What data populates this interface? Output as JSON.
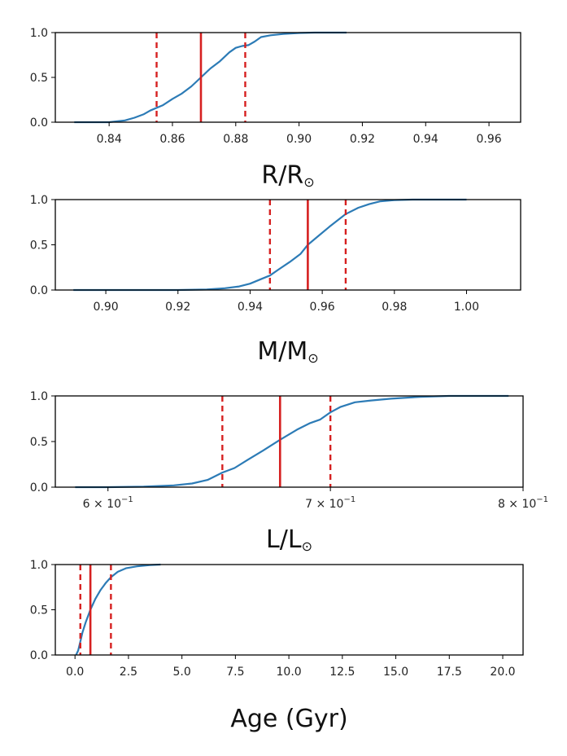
{
  "chart_data": [
    {
      "type": "line",
      "name": "radius",
      "xlabel": "R/R",
      "xlabel_symbol": "⊙",
      "x_scale": "linear",
      "xlim": [
        0.823,
        0.97
      ],
      "ylim": [
        0,
        1
      ],
      "xticks": [
        0.84,
        0.86,
        0.88,
        0.9,
        0.92,
        0.94,
        0.96
      ],
      "xtick_labels": [
        "0.84",
        "0.86",
        "0.88",
        "0.90",
        "0.92",
        "0.94",
        "0.96"
      ],
      "yticks": [
        0,
        0.5,
        1.0
      ],
      "ytick_labels": [
        "0.0",
        "0.5",
        "1.0"
      ],
      "median": 0.869,
      "lower": 0.855,
      "upper": 0.883,
      "cdf": {
        "x": [
          0.829,
          0.835,
          0.84,
          0.845,
          0.848,
          0.851,
          0.853,
          0.855,
          0.857,
          0.86,
          0.863,
          0.866,
          0.869,
          0.872,
          0.875,
          0.878,
          0.88,
          0.882,
          0.884,
          0.886,
          0.888,
          0.891,
          0.895,
          0.9,
          0.905,
          0.91,
          0.915
        ],
        "y": [
          0.0,
          0.0,
          0.0,
          0.02,
          0.05,
          0.09,
          0.13,
          0.16,
          0.19,
          0.26,
          0.32,
          0.4,
          0.5,
          0.6,
          0.68,
          0.78,
          0.83,
          0.85,
          0.86,
          0.9,
          0.95,
          0.97,
          0.985,
          0.995,
          1.0,
          1.0,
          1.0
        ]
      }
    },
    {
      "type": "line",
      "name": "mass",
      "xlabel": "M/M",
      "xlabel_symbol": "⊙",
      "x_scale": "linear",
      "xlim": [
        0.886,
        1.015
      ],
      "ylim": [
        0,
        1
      ],
      "xticks": [
        0.9,
        0.92,
        0.94,
        0.96,
        0.98,
        1.0
      ],
      "xtick_labels": [
        "0.90",
        "0.92",
        "0.94",
        "0.96",
        "0.98",
        "1.00"
      ],
      "yticks": [
        0,
        0.5,
        1.0
      ],
      "ytick_labels": [
        "0.0",
        "0.5",
        "1.0"
      ],
      "median": 0.956,
      "lower": 0.9455,
      "upper": 0.9665,
      "cdf": {
        "x": [
          0.891,
          0.9,
          0.91,
          0.92,
          0.928,
          0.933,
          0.937,
          0.94,
          0.943,
          0.9455,
          0.948,
          0.951,
          0.954,
          0.956,
          0.959,
          0.962,
          0.9665,
          0.97,
          0.973,
          0.976,
          0.98,
          0.985,
          0.99,
          0.995,
          1.0
        ],
        "y": [
          0.0,
          0.0,
          0.0,
          0.0,
          0.005,
          0.02,
          0.04,
          0.07,
          0.12,
          0.16,
          0.23,
          0.31,
          0.4,
          0.5,
          0.6,
          0.7,
          0.84,
          0.91,
          0.95,
          0.98,
          0.995,
          1.0,
          1.0,
          1.0,
          1.0
        ]
      }
    },
    {
      "type": "line",
      "name": "luminosity",
      "xlabel": "L/L",
      "xlabel_symbol": "⊙",
      "x_scale": "log",
      "xlim": [
        0.5785,
        0.8
      ],
      "ylim": [
        0,
        1
      ],
      "xticks": [
        0.6,
        0.7,
        0.8
      ],
      "xtick_labels": [
        {
          "base": "6 × 10",
          "exp": "−1"
        },
        {
          "base": "7 × 10",
          "exp": "−1"
        },
        {
          "base": "8 × 10",
          "exp": "−1"
        }
      ],
      "yticks": [
        0,
        0.5,
        1.0
      ],
      "ytick_labels": [
        "0.0",
        "0.5",
        "1.0"
      ],
      "median": 0.676,
      "lower": 0.6495,
      "upper": 0.7,
      "cdf": {
        "x": [
          0.5865,
          0.6,
          0.615,
          0.628,
          0.636,
          0.643,
          0.6495,
          0.655,
          0.661,
          0.668,
          0.676,
          0.684,
          0.69,
          0.695,
          0.7,
          0.705,
          0.712,
          0.72,
          0.73,
          0.745,
          0.76,
          0.78,
          0.792
        ],
        "y": [
          0.0,
          0.0,
          0.005,
          0.02,
          0.04,
          0.08,
          0.16,
          0.21,
          0.3,
          0.4,
          0.52,
          0.63,
          0.7,
          0.74,
          0.82,
          0.88,
          0.93,
          0.95,
          0.97,
          0.99,
          1.0,
          1.0,
          1.0
        ]
      }
    },
    {
      "type": "line",
      "name": "age",
      "xlabel": "Age (Gyr)",
      "xlabel_symbol": "",
      "x_scale": "linear",
      "xlim": [
        -0.92,
        20.95
      ],
      "ylim": [
        0,
        1
      ],
      "xticks": [
        0,
        2.5,
        5,
        7.5,
        10,
        12.5,
        15,
        17.5,
        20
      ],
      "xtick_labels": [
        "0.0",
        "2.5",
        "5.0",
        "7.5",
        "10.0",
        "12.5",
        "15.0",
        "17.5",
        "20.0"
      ],
      "yticks": [
        0,
        0.5,
        1.0
      ],
      "ytick_labels": [
        "0.0",
        "0.5",
        "1.0"
      ],
      "median": 0.72,
      "lower": 0.25,
      "upper": 1.68,
      "cdf": {
        "x": [
          0.05,
          0.15,
          0.25,
          0.35,
          0.5,
          0.72,
          0.95,
          1.2,
          1.45,
          1.68,
          2.0,
          2.4,
          2.9,
          3.5,
          4.0
        ],
        "y": [
          0.0,
          0.05,
          0.15,
          0.25,
          0.36,
          0.5,
          0.62,
          0.72,
          0.8,
          0.86,
          0.92,
          0.96,
          0.98,
          0.995,
          1.0
        ]
      }
    }
  ]
}
